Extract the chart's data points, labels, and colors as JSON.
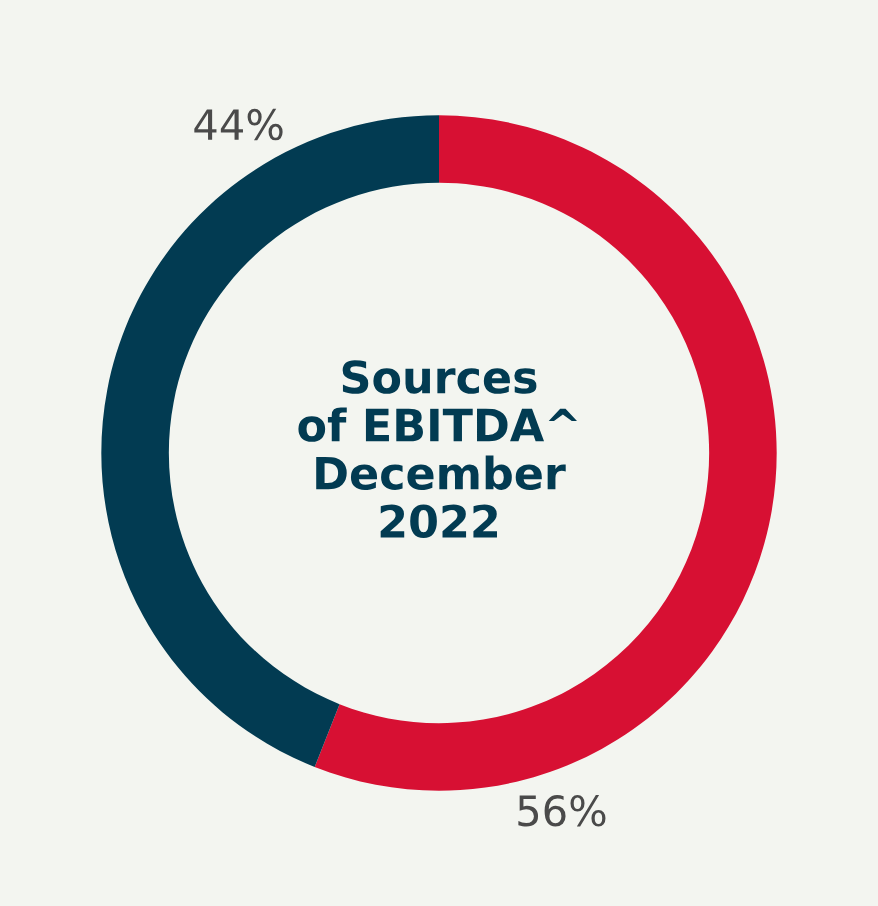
{
  "chart_data": {
    "type": "donut",
    "title": "Sources\nof EBITDA^\nDecember\n2022",
    "categories": [
      null,
      null
    ],
    "values": [
      56,
      44
    ],
    "colors": [
      "#d71033",
      "#023b52"
    ],
    "value_labels": [
      "56%",
      "44%"
    ],
    "legend": false
  }
}
